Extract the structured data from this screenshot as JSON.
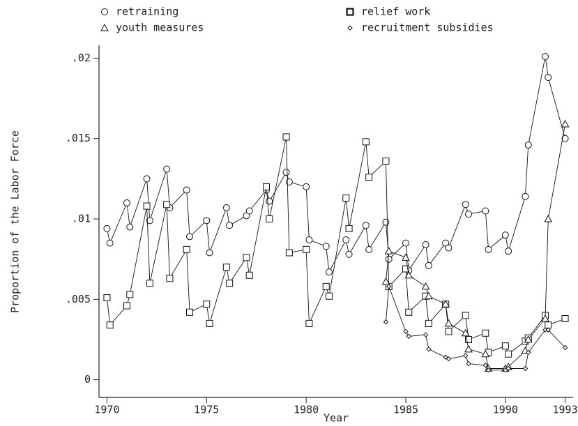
{
  "chart_data": {
    "type": "line",
    "x_label": "Year",
    "y_label": "Proportion of the Labor Force",
    "xlim": [
      1969.6,
      1993.4
    ],
    "ylim": [
      -0.0011,
      0.0208
    ],
    "xticks": [
      1970,
      1975,
      1980,
      1985,
      1990,
      1993
    ],
    "yticks": [
      0,
      {
        "value": 0.005,
        "label": ".005"
      },
      {
        "value": 0.01,
        "label": ".01"
      },
      {
        "value": 0.015,
        "label": ".015"
      },
      {
        "value": 0.02,
        "label": ".02"
      }
    ],
    "series": [
      {
        "name": "retraining",
        "marker": "circle",
        "color": "#111111",
        "x": [
          1970.0,
          1970.15,
          1971.0,
          1971.15,
          1972.0,
          1972.15,
          1973.0,
          1973.15,
          1974.0,
          1974.15,
          1975.0,
          1975.15,
          1976.0,
          1976.15,
          1977.0,
          1977.15,
          1978.0,
          1978.15,
          1979.0,
          1979.15,
          1980.0,
          1980.15,
          1981.0,
          1981.15,
          1982.0,
          1982.15,
          1983.0,
          1983.15,
          1984.0,
          1984.15,
          1985.0,
          1985.15,
          1986.0,
          1986.15,
          1987.0,
          1987.15,
          1988.0,
          1988.15,
          1989.0,
          1989.15,
          1990.0,
          1990.15,
          1991.0,
          1991.15,
          1992.0,
          1992.15,
          1993.0
        ],
        "values": [
          0.0094,
          0.0085,
          0.011,
          0.0095,
          0.0125,
          0.0099,
          0.0131,
          0.0107,
          0.0118,
          0.0089,
          0.0099,
          0.0079,
          0.0107,
          0.0096,
          0.0102,
          0.0105,
          0.0118,
          0.0111,
          0.0129,
          0.0123,
          0.012,
          0.0087,
          0.0083,
          0.0067,
          0.0087,
          0.0078,
          0.0096,
          0.0081,
          0.0098,
          0.0075,
          0.0085,
          0.0068,
          0.0084,
          0.0071,
          0.0085,
          0.0082,
          0.0109,
          0.0103,
          0.0105,
          0.0081,
          0.009,
          0.008,
          0.0114,
          0.0146,
          0.0201,
          0.0188,
          0.015
        ]
      },
      {
        "name": "relief work",
        "marker": "square",
        "color": "#111111",
        "x": [
          1970.0,
          1970.15,
          1971.0,
          1971.15,
          1972.0,
          1972.15,
          1973.0,
          1973.15,
          1974.0,
          1974.15,
          1975.0,
          1975.15,
          1976.0,
          1976.15,
          1977.0,
          1977.15,
          1978.0,
          1978.15,
          1979.0,
          1979.15,
          1980.0,
          1980.15,
          1981.0,
          1981.15,
          1982.0,
          1982.15,
          1983.0,
          1983.15,
          1984.0,
          1984.15,
          1985.0,
          1985.15,
          1986.0,
          1986.15,
          1987.0,
          1987.15,
          1988.0,
          1988.15,
          1989.0,
          1989.15,
          1990.0,
          1990.15,
          1991.0,
          1991.15,
          1992.0,
          1992.15,
          1993.0
        ],
        "values": [
          0.0051,
          0.0034,
          0.0046,
          0.0053,
          0.0108,
          0.006,
          0.0109,
          0.0063,
          0.0081,
          0.0042,
          0.0047,
          0.0035,
          0.007,
          0.006,
          0.0076,
          0.0065,
          0.012,
          0.01,
          0.0151,
          0.0079,
          0.0081,
          0.0035,
          0.0058,
          0.0052,
          0.0113,
          0.0094,
          0.0148,
          0.0126,
          0.0136,
          0.0058,
          0.0069,
          0.0042,
          0.0052,
          0.0035,
          0.0047,
          0.003,
          0.004,
          0.0025,
          0.0029,
          0.0017,
          0.0021,
          0.0016,
          0.0024,
          0.0026,
          0.004,
          0.0034,
          0.0038
        ]
      },
      {
        "name": "youth measures",
        "marker": "triangle",
        "color": "#111111",
        "x": [
          1984.0,
          1984.15,
          1985.0,
          1985.15,
          1986.0,
          1986.15,
          1987.0,
          1987.15,
          1988.0,
          1988.15,
          1989.0,
          1989.15,
          1990.0,
          1990.15,
          1991.0,
          1991.15,
          1992.0,
          1992.15,
          1993.0
        ],
        "values": [
          0.0061,
          0.008,
          0.0076,
          0.0065,
          0.0058,
          0.0052,
          0.0047,
          0.0035,
          0.0029,
          0.0019,
          0.0016,
          0.0007,
          0.0007,
          0.0008,
          0.0018,
          0.0025,
          0.0038,
          0.01,
          0.0159
        ]
      },
      {
        "name": "recruitment subsidies",
        "marker": "diamond",
        "color": "#111111",
        "x": [
          1984.0,
          1984.15,
          1985.0,
          1985.15,
          1986.0,
          1986.15,
          1987.0,
          1987.15,
          1988.0,
          1988.15,
          1989.0,
          1989.15,
          1990.0,
          1990.15,
          1991.0,
          1991.15,
          1992.0,
          1992.15,
          1993.0
        ],
        "values": [
          0.0036,
          0.0058,
          0.003,
          0.0027,
          0.0028,
          0.0019,
          0.0014,
          0.0013,
          0.0015,
          0.001,
          0.0009,
          0.0006,
          0.0006,
          0.0007,
          0.0007,
          0.0017,
          0.0031,
          0.0031,
          0.002
        ]
      }
    ]
  }
}
